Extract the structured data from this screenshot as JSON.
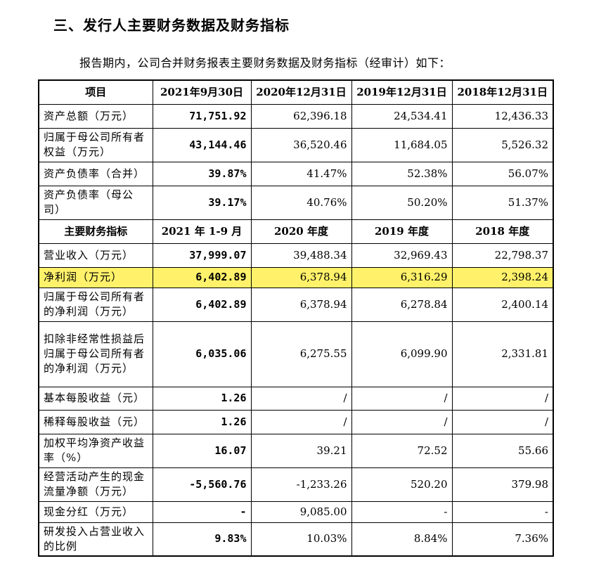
{
  "heading": "三、发行人主要财务数据及财务指标",
  "intro": "报告期内，公司合并财务报表主要财务数据及财务指标（经审计）如下：",
  "header1": [
    "项目",
    "2021年9月30日",
    "2020年12月31日",
    "2019年12月31日",
    "2018年12月31日"
  ],
  "header2": [
    "主要财务指标",
    "2021 年 1-9 月",
    "2020 年度",
    "2019 年度",
    "2018 年度"
  ],
  "rows": [
    {
      "label": "资产总额（万元）",
      "c1": "71,751.92",
      "c2": "62,396.18",
      "c3": "24,534.41",
      "c4": "12,436.33"
    },
    {
      "label": "归属于母公司所有者权益（万元）",
      "c1": "43,144.46",
      "c2": "36,520.46",
      "c3": "11,684.05",
      "c4": "5,526.32"
    },
    {
      "label": "资产负债率（合并）",
      "c1": "39.87%",
      "c2": "41.47%",
      "c3": "52.38%",
      "c4": "56.07%"
    },
    {
      "label": "资产负债率（母公司）",
      "c1": "39.17%",
      "c2": "40.76%",
      "c3": "50.20%",
      "c4": "51.37%"
    },
    {
      "label": "营业收入（万元）",
      "c1": "37,999.07",
      "c2": "39,488.34",
      "c3": "32,969.43",
      "c4": "22,798.37"
    },
    {
      "label": "净利润（万元）",
      "c1": "6,402.89",
      "c2": "6,378.94",
      "c3": "6,316.29",
      "c4": "2,398.24"
    },
    {
      "label": "归属于母公司所有者的净利润（万元）",
      "c1": "6,402.89",
      "c2": "6,378.94",
      "c3": "6,278.84",
      "c4": "2,400.14"
    },
    {
      "label": "扣除非经常性损益后归属于母公司所有者的净利润（万元）",
      "c1": "6,035.06",
      "c2": "6,275.55",
      "c3": "6,099.90",
      "c4": "2,331.81"
    },
    {
      "label": "基本每股收益（元）",
      "c1": "1.26",
      "c2": "/",
      "c3": "/",
      "c4": "/"
    },
    {
      "label": "稀释每股收益（元）",
      "c1": "1.26",
      "c2": "/",
      "c3": "/",
      "c4": "/"
    },
    {
      "label": "加权平均净资产收益率（%）",
      "c1": "16.07",
      "c2": "39.21",
      "c3": "72.52",
      "c4": "55.66"
    },
    {
      "label": "经营活动产生的现金流量净额（万元）",
      "c1": "-5,560.76",
      "c2": "-1,233.26",
      "c3": "520.20",
      "c4": "379.98"
    },
    {
      "label": "现金分红（万元）",
      "c1": "-",
      "c2": "9,085.00",
      "c3": "-",
      "c4": "-"
    },
    {
      "label": "研发投入占营业收入的比例",
      "c1": "9.83%",
      "c2": "10.03%",
      "c3": "8.84%",
      "c4": "7.36%"
    }
  ],
  "highlight_color": "#fff26a"
}
